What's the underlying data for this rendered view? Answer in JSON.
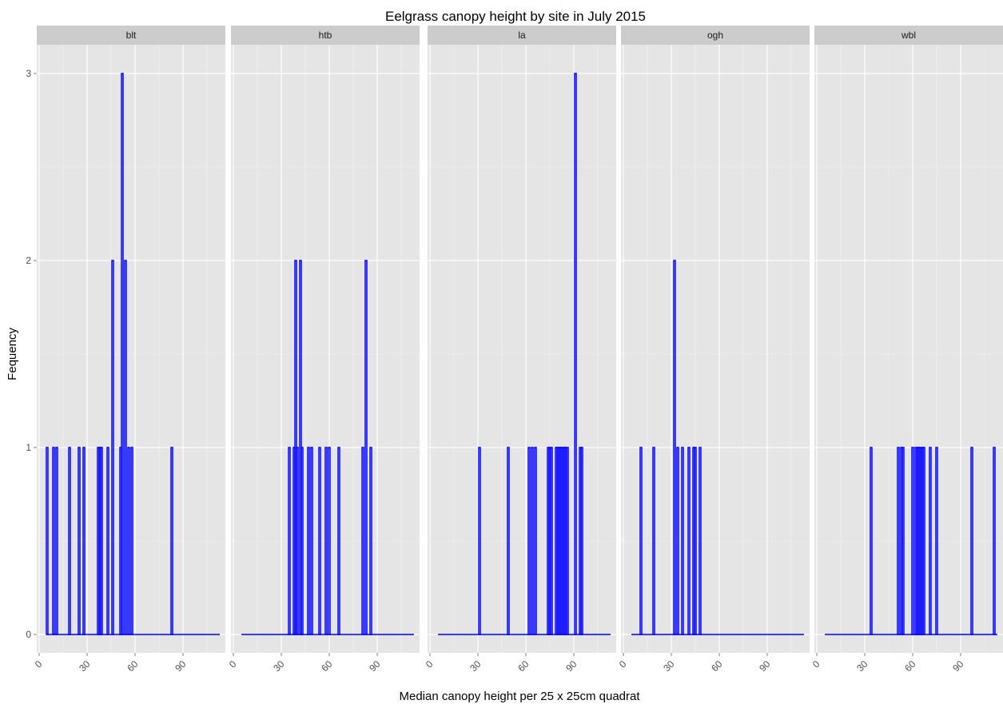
{
  "chart_data": {
    "type": "bar",
    "title": "Eelgrass canopy height by site in July 2015",
    "xlabel": "Median canopy height per 25 x 25cm quadrat",
    "ylabel": "Fequency",
    "xlim": [
      0,
      115
    ],
    "ylim": [
      0,
      3
    ],
    "xticks": [
      0,
      30,
      60,
      90
    ],
    "yticks": [
      0,
      1,
      2,
      3
    ],
    "grid": true,
    "bin_width": 1,
    "series_color": "#0000ff",
    "panel_background": "#e5e5e5",
    "strip_background": "#cccccc",
    "panels": [
      {
        "name": "blt",
        "range": [
          5,
          113
        ],
        "values": [
          {
            "x": 5,
            "y": 1
          },
          {
            "x": 9,
            "y": 1
          },
          {
            "x": 11,
            "y": 1
          },
          {
            "x": 19,
            "y": 1
          },
          {
            "x": 25,
            "y": 1
          },
          {
            "x": 28,
            "y": 1
          },
          {
            "x": 37,
            "y": 1
          },
          {
            "x": 38,
            "y": 1
          },
          {
            "x": 39,
            "y": 1
          },
          {
            "x": 43,
            "y": 1
          },
          {
            "x": 46,
            "y": 2
          },
          {
            "x": 51,
            "y": 1
          },
          {
            "x": 52,
            "y": 3
          },
          {
            "x": 54,
            "y": 2
          },
          {
            "x": 56,
            "y": 1
          },
          {
            "x": 58,
            "y": 1
          },
          {
            "x": 83,
            "y": 1
          }
        ]
      },
      {
        "name": "htb",
        "range": [
          5,
          113
        ],
        "values": [
          {
            "x": 35,
            "y": 1
          },
          {
            "x": 38,
            "y": 1
          },
          {
            "x": 39,
            "y": 2
          },
          {
            "x": 40,
            "y": 1
          },
          {
            "x": 42,
            "y": 2
          },
          {
            "x": 43,
            "y": 1
          },
          {
            "x": 47,
            "y": 1
          },
          {
            "x": 49,
            "y": 1
          },
          {
            "x": 54,
            "y": 1
          },
          {
            "x": 58,
            "y": 1
          },
          {
            "x": 60,
            "y": 1
          },
          {
            "x": 66,
            "y": 1
          },
          {
            "x": 81,
            "y": 1
          },
          {
            "x": 83,
            "y": 2
          },
          {
            "x": 86,
            "y": 1
          }
        ]
      },
      {
        "name": "la",
        "range": [
          5,
          113
        ],
        "values": [
          {
            "x": 31,
            "y": 1
          },
          {
            "x": 49,
            "y": 1
          },
          {
            "x": 62,
            "y": 1
          },
          {
            "x": 64,
            "y": 1
          },
          {
            "x": 66,
            "y": 1
          },
          {
            "x": 74,
            "y": 1
          },
          {
            "x": 75,
            "y": 1
          },
          {
            "x": 76,
            "y": 1
          },
          {
            "x": 79,
            "y": 1
          },
          {
            "x": 80,
            "y": 1
          },
          {
            "x": 81,
            "y": 1
          },
          {
            "x": 82,
            "y": 1
          },
          {
            "x": 83,
            "y": 1
          },
          {
            "x": 84,
            "y": 1
          },
          {
            "x": 85,
            "y": 1
          },
          {
            "x": 86,
            "y": 1
          },
          {
            "x": 91,
            "y": 3
          },
          {
            "x": 94,
            "y": 1
          },
          {
            "x": 95,
            "y": 1
          }
        ]
      },
      {
        "name": "ogh",
        "range": [
          5,
          113
        ],
        "values": [
          {
            "x": 11,
            "y": 1
          },
          {
            "x": 19,
            "y": 1
          },
          {
            "x": 32,
            "y": 2
          },
          {
            "x": 34,
            "y": 1
          },
          {
            "x": 37,
            "y": 1
          },
          {
            "x": 41,
            "y": 1
          },
          {
            "x": 44,
            "y": 1
          },
          {
            "x": 45,
            "y": 1
          },
          {
            "x": 48,
            "y": 1
          }
        ]
      },
      {
        "name": "wbl",
        "range": [
          5,
          113
        ],
        "values": [
          {
            "x": 34,
            "y": 1
          },
          {
            "x": 51,
            "y": 1
          },
          {
            "x": 53,
            "y": 1
          },
          {
            "x": 54,
            "y": 1
          },
          {
            "x": 60,
            "y": 1
          },
          {
            "x": 62,
            "y": 1
          },
          {
            "x": 63,
            "y": 1
          },
          {
            "x": 64,
            "y": 1
          },
          {
            "x": 65,
            "y": 1
          },
          {
            "x": 66,
            "y": 1
          },
          {
            "x": 67,
            "y": 1
          },
          {
            "x": 71,
            "y": 1
          },
          {
            "x": 75,
            "y": 1
          },
          {
            "x": 97,
            "y": 1
          },
          {
            "x": 111,
            "y": 1
          }
        ]
      }
    ]
  }
}
